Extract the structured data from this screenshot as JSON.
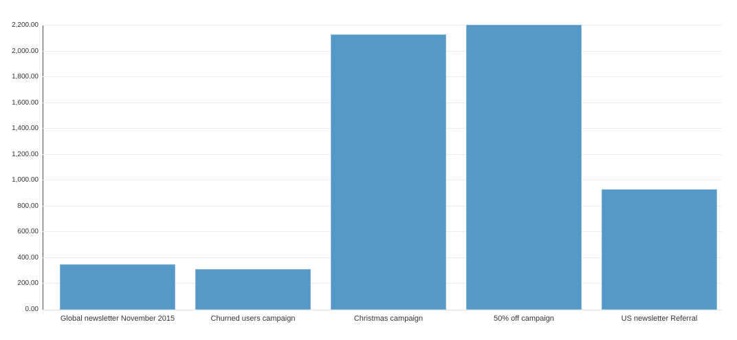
{
  "chart_data": {
    "type": "bar",
    "title": "",
    "xlabel": "",
    "ylabel": "",
    "categories": [
      "Global newsletter November 2015",
      "Churned users campaign",
      "Christmas campaign",
      "50% off campaign",
      "US newsletter Referral"
    ],
    "values": [
      352,
      315,
      2133,
      2205,
      932
    ],
    "ylim": [
      0,
      2200
    ],
    "ytick_step": 200,
    "ytick_labels": [
      "0.00",
      "200.00",
      "400.00",
      "600.00",
      "800.00",
      "1,000.00",
      "1,200.00",
      "1,400.00",
      "1,600.00",
      "1,800.00",
      "2,000.00",
      "2,200.00"
    ],
    "grid": true,
    "legend": false,
    "legend_position": "none",
    "colors": {
      "bar_fill": "#5498c8",
      "bar_edge": "#85b5d9",
      "gridline": "#ececec",
      "baseline": "#e0e0e0",
      "axis_line": "#4a4a4a",
      "tick_text": "#333333",
      "background": "#ffffff"
    }
  }
}
